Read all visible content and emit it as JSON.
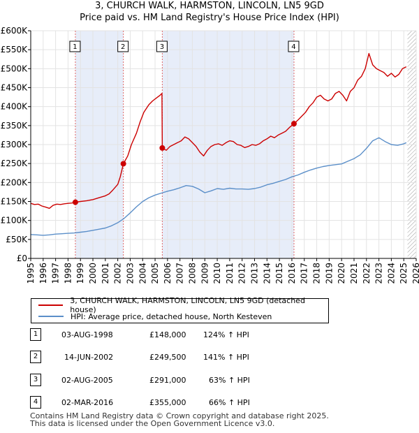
{
  "chart_data": {
    "type": "line",
    "title": "3, CHURCH WALK, HARMSTON, LINCOLN, LN5 9GD",
    "subtitle": "Price paid vs. HM Land Registry's House Price Index (HPI)",
    "xlim": [
      1995,
      2026
    ],
    "ylim": [
      0,
      600000
    ],
    "x_ticks": [
      "1995",
      "1996",
      "1997",
      "1998",
      "1999",
      "2000",
      "2001",
      "2002",
      "2003",
      "2004",
      "2005",
      "2006",
      "2007",
      "2008",
      "2009",
      "2010",
      "2011",
      "2012",
      "2013",
      "2014",
      "2015",
      "2016",
      "2017",
      "2018",
      "2019",
      "2020",
      "2021",
      "2022",
      "2023",
      "2024",
      "2025",
      "2026"
    ],
    "y_ticks": [
      {
        "value": 0,
        "label": "£0"
      },
      {
        "value": 50000,
        "label": "£50K"
      },
      {
        "value": 100000,
        "label": "£100K"
      },
      {
        "value": 150000,
        "label": "£150K"
      },
      {
        "value": 200000,
        "label": "£200K"
      },
      {
        "value": 250000,
        "label": "£250K"
      },
      {
        "value": 300000,
        "label": "£300K"
      },
      {
        "value": 350000,
        "label": "£350K"
      },
      {
        "value": 400000,
        "label": "£400K"
      },
      {
        "value": 450000,
        "label": "£450K"
      },
      {
        "value": 500000,
        "label": "£500K"
      },
      {
        "value": 550000,
        "label": "£550K"
      },
      {
        "value": 600000,
        "label": "£600K"
      }
    ],
    "shaded_periods": [
      [
        1998.59,
        2002.45
      ],
      [
        2005.58,
        2016.17
      ]
    ],
    "hatched_after": 2025.3,
    "series": [
      {
        "name": "3, CHURCH WALK, HARMSTON, LINCOLN, LN5 9GD (detached house)",
        "color": "#cc0000",
        "x": [
          1995.0,
          1995.3,
          1995.6,
          1995.9,
          1996.2,
          1996.5,
          1996.8,
          1997.1,
          1997.4,
          1997.7,
          1998.0,
          1998.3,
          1998.59,
          1999.0,
          1999.5,
          2000.0,
          2000.5,
          2001.0,
          2001.3,
          2001.6,
          2002.0,
          2002.2,
          2002.45,
          2002.8,
          2003.1,
          2003.5,
          2003.8,
          2004.1,
          2004.5,
          2004.8,
          2005.2,
          2005.4,
          2005.55,
          2005.58,
          2005.9,
          2006.2,
          2006.5,
          2006.8,
          2007.1,
          2007.4,
          2007.7,
          2008.0,
          2008.3,
          2008.6,
          2008.9,
          2009.2,
          2009.5,
          2009.8,
          2010.1,
          2010.4,
          2010.7,
          2011.0,
          2011.3,
          2011.6,
          2011.9,
          2012.2,
          2012.5,
          2012.8,
          2013.1,
          2013.4,
          2013.7,
          2014.0,
          2014.3,
          2014.6,
          2014.9,
          2015.2,
          2015.5,
          2015.8,
          2016.17,
          2016.5,
          2016.8,
          2017.1,
          2017.4,
          2017.7,
          2018.0,
          2018.3,
          2018.6,
          2018.9,
          2019.2,
          2019.5,
          2019.8,
          2020.1,
          2020.4,
          2020.7,
          2021.0,
          2021.3,
          2021.6,
          2021.9,
          2022.2,
          2022.5,
          2022.8,
          2023.1,
          2023.4,
          2023.7,
          2024.0,
          2024.3,
          2024.6,
          2024.9,
          2025.2
        ],
        "values": [
          145000,
          142000,
          143000,
          138000,
          135000,
          132000,
          140000,
          143000,
          142000,
          144000,
          145000,
          146000,
          148000,
          150000,
          152000,
          155000,
          160000,
          165000,
          170000,
          180000,
          195000,
          215000,
          249500,
          270000,
          300000,
          330000,
          360000,
          385000,
          405000,
          415000,
          425000,
          430000,
          435000,
          291000,
          285000,
          295000,
          300000,
          305000,
          310000,
          320000,
          315000,
          305000,
          295000,
          280000,
          270000,
          285000,
          295000,
          300000,
          302000,
          298000,
          305000,
          310000,
          308000,
          300000,
          298000,
          292000,
          295000,
          300000,
          298000,
          302000,
          310000,
          315000,
          322000,
          318000,
          325000,
          330000,
          335000,
          345000,
          355000,
          365000,
          375000,
          385000,
          400000,
          410000,
          425000,
          430000,
          420000,
          415000,
          420000,
          435000,
          440000,
          430000,
          415000,
          440000,
          450000,
          470000,
          480000,
          500000,
          540000,
          510000,
          500000,
          495000,
          490000,
          480000,
          488000,
          478000,
          485000,
          500000,
          505000
        ]
      },
      {
        "name": "HPI: Average price, detached house, North Kesteven",
        "color": "#5b8fc9",
        "x": [
          1995.0,
          1995.5,
          1996.0,
          1996.5,
          1997.0,
          1997.5,
          1998.0,
          1998.5,
          1999.0,
          1999.5,
          2000.0,
          2000.5,
          2001.0,
          2001.5,
          2002.0,
          2002.5,
          2003.0,
          2003.5,
          2004.0,
          2004.5,
          2005.0,
          2005.5,
          2006.0,
          2006.5,
          2007.0,
          2007.5,
          2008.0,
          2008.5,
          2009.0,
          2009.5,
          2010.0,
          2010.5,
          2011.0,
          2011.5,
          2012.0,
          2012.5,
          2013.0,
          2013.5,
          2014.0,
          2014.5,
          2015.0,
          2015.5,
          2016.0,
          2016.5,
          2017.0,
          2017.5,
          2018.0,
          2018.5,
          2019.0,
          2019.5,
          2020.0,
          2020.5,
          2021.0,
          2021.5,
          2022.0,
          2022.5,
          2023.0,
          2023.5,
          2024.0,
          2024.5,
          2025.0,
          2025.2
        ],
        "values": [
          63000,
          62000,
          61000,
          62000,
          64000,
          65000,
          66000,
          67000,
          69000,
          71000,
          74000,
          77000,
          80000,
          86000,
          94000,
          105000,
          120000,
          136000,
          150000,
          160000,
          167000,
          172000,
          177000,
          181000,
          186000,
          192000,
          190000,
          183000,
          173000,
          178000,
          184000,
          182000,
          185000,
          183000,
          183000,
          182000,
          184000,
          188000,
          194000,
          198000,
          203000,
          208000,
          215000,
          220000,
          227000,
          233000,
          238000,
          242000,
          245000,
          247000,
          249000,
          256000,
          263000,
          273000,
          290000,
          310000,
          318000,
          308000,
          300000,
          298000,
          302000,
          305000
        ]
      }
    ],
    "sale_points": [
      {
        "label": "1",
        "x": 1998.59,
        "value": 148000
      },
      {
        "label": "2",
        "x": 2002.45,
        "value": 249500
      },
      {
        "label": "3",
        "x": 2005.58,
        "value": 291000
      },
      {
        "label": "4",
        "x": 2016.17,
        "value": 355000
      }
    ]
  },
  "legend": {
    "property_label": "3, CHURCH WALK, HARMSTON, LINCOLN, LN5 9GD (detached house)",
    "hpi_label": "HPI: Average price, detached house, North Kesteven",
    "property_color": "#cc0000",
    "hpi_color": "#5b8fc9"
  },
  "sales": [
    {
      "num": "1",
      "date": "03-AUG-1998",
      "price": "£148,000",
      "hpi": "124% ↑ HPI"
    },
    {
      "num": "2",
      "date": "14-JUN-2002",
      "price": "£249,500",
      "hpi": "141% ↑ HPI"
    },
    {
      "num": "3",
      "date": "02-AUG-2005",
      "price": "£291,000",
      "hpi": "63% ↑ HPI"
    },
    {
      "num": "4",
      "date": "02-MAR-2016",
      "price": "£355,000",
      "hpi": "66% ↑ HPI"
    }
  ],
  "footer": {
    "line1": "Contains HM Land Registry data © Crown copyright and database right 2025.",
    "line2": "This data is licensed under the Open Government Licence v3.0."
  }
}
